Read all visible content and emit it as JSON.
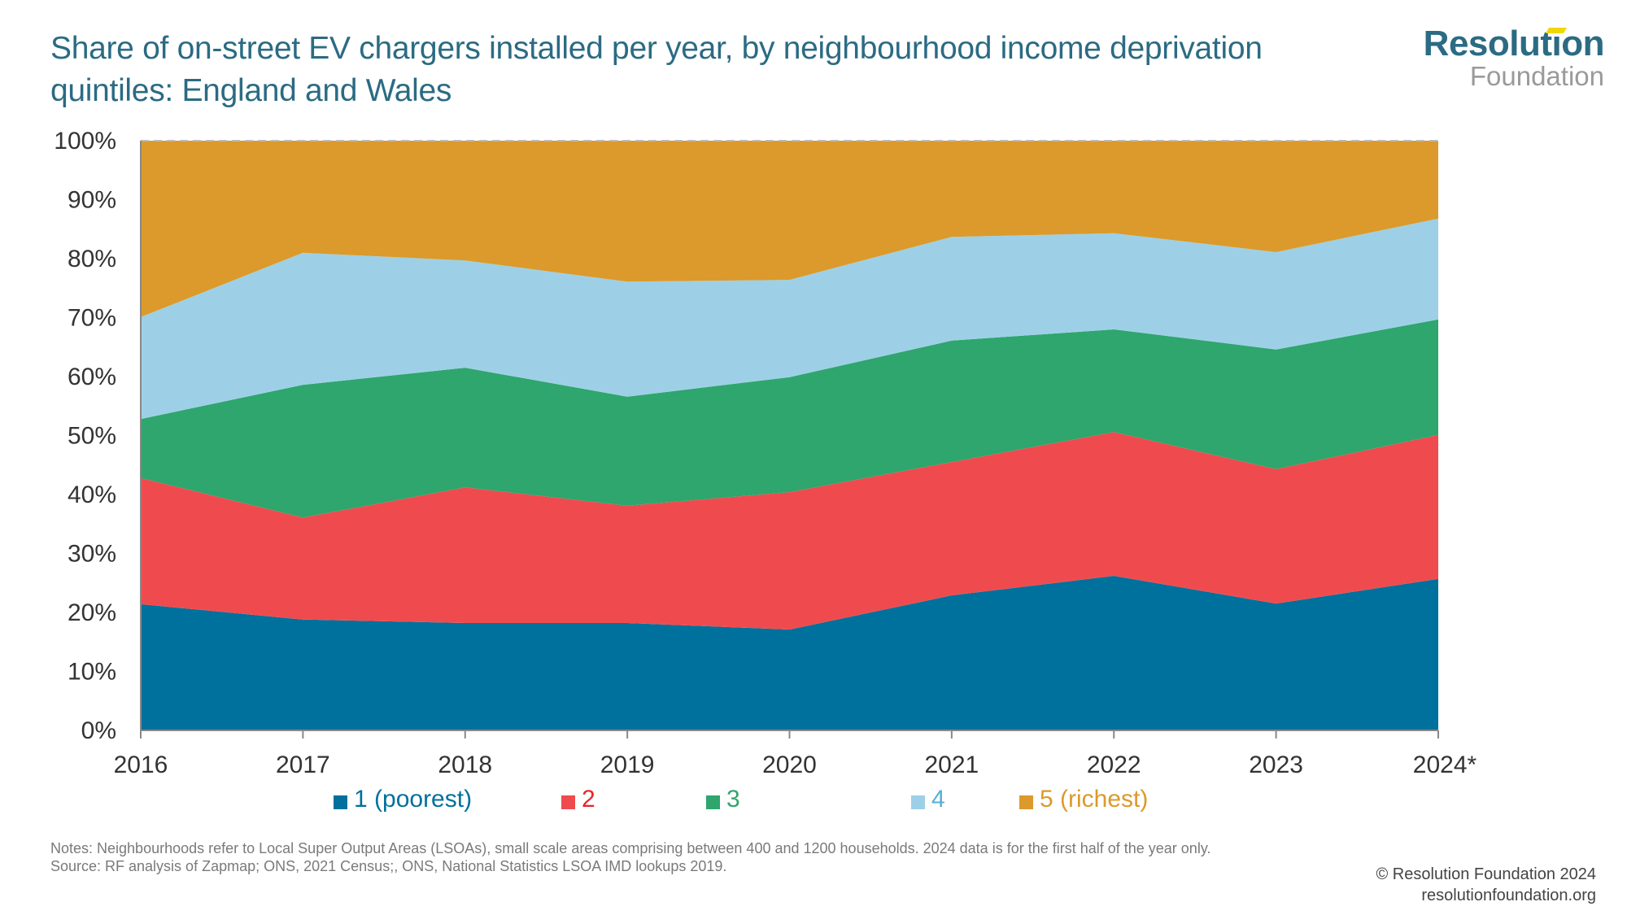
{
  "header": {
    "title": "Share of on-street EV chargers installed per year, by neighbourhood income deprivation quintiles: England and Wales"
  },
  "logo": {
    "top": "Resolution",
    "bottom": "Foundation",
    "colors": {
      "primary": "#2b6b83",
      "secondary": "#9a9a9a",
      "accent": "#f2d600"
    }
  },
  "chart_data": {
    "type": "area",
    "stacked": true,
    "title": "Share of on-street EV chargers installed per year, by neighbourhood income deprivation quintiles: England and Wales",
    "xlabel": "",
    "ylabel": "",
    "x": [
      "2016",
      "2017",
      "2018",
      "2019",
      "2020",
      "2021",
      "2022",
      "2023",
      "2024*"
    ],
    "ylim": [
      0,
      100
    ],
    "yticks": [
      "0%",
      "10%",
      "20%",
      "30%",
      "40%",
      "50%",
      "60%",
      "70%",
      "80%",
      "90%",
      "100%"
    ],
    "grid": false,
    "legend_position": "bottom",
    "series": [
      {
        "name": "1 (poorest)",
        "color": "#00709c",
        "values": [
          21.4,
          18.8,
          18.2,
          18.2,
          17.1,
          22.9,
          26.2,
          21.5,
          25.7
        ]
      },
      {
        "name": "2",
        "color": "#ef4b4e",
        "values": [
          21.4,
          17.3,
          23.0,
          19.9,
          23.3,
          22.6,
          24.4,
          22.8,
          24.4
        ]
      },
      {
        "name": "3",
        "color": "#2ea66d",
        "values": [
          10.0,
          22.5,
          20.3,
          18.5,
          19.5,
          20.6,
          17.4,
          20.3,
          19.6
        ]
      },
      {
        "name": "4",
        "color": "#9dd0e6",
        "values": [
          17.3,
          22.4,
          18.2,
          19.5,
          16.5,
          17.6,
          16.3,
          16.5,
          17.1
        ]
      },
      {
        "name": "5 (richest)",
        "color": "#db9a2b",
        "values": [
          29.9,
          19.0,
          20.3,
          23.9,
          23.6,
          16.3,
          15.7,
          18.9,
          13.2
        ]
      }
    ]
  },
  "legend": {
    "items": [
      {
        "label": "1 (poorest)",
        "color": "#00709c",
        "text_color": "#00709c"
      },
      {
        "label": "2",
        "color": "#ef4b4e",
        "text_color": "#e8242b"
      },
      {
        "label": "3",
        "color": "#2ea66d",
        "text_color": "#2ea66d"
      },
      {
        "label": "4",
        "color": "#9dd0e6",
        "text_color": "#58aed6"
      },
      {
        "label": "5 (richest)",
        "color": "#db9a2b",
        "text_color": "#db9a2b"
      }
    ]
  },
  "footer": {
    "notes": "Notes: Neighbourhoods refer to Local Super Output Areas (LSOAs), small scale areas comprising between 400 and 1200 households. 2024 data is for the first half of the year only.",
    "source": "Source: RF analysis of Zapmap; ONS, 2021 Census;, ONS, National Statistics LSOA IMD lookups 2019.",
    "copyright": "© Resolution Foundation 2024",
    "website": "resolutionfoundation.org"
  }
}
